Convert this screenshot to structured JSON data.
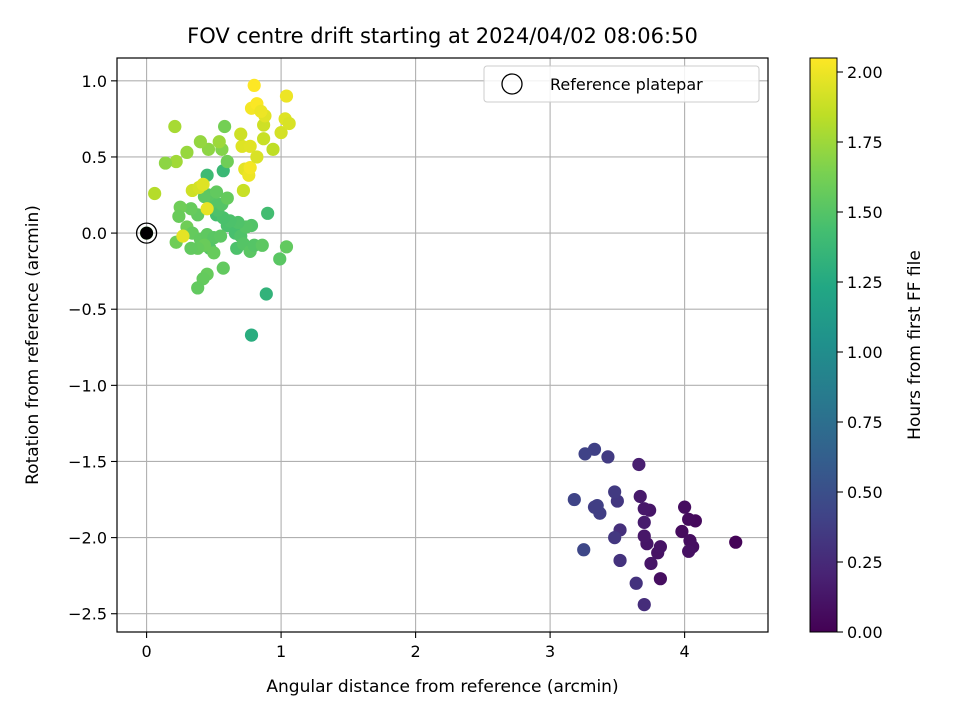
{
  "chart_data": {
    "type": "scatter",
    "title": "FOV centre drift starting at 2024/04/02 08:06:50",
    "xlabel": "Angular distance from reference (arcmin)",
    "ylabel": "Rotation from reference (arcmin)",
    "xlim": [
      -0.22,
      4.62
    ],
    "ylim": [
      -2.62,
      1.15
    ],
    "xticks": [
      0,
      1,
      2,
      3,
      4
    ],
    "xtick_labels": [
      "0",
      "1",
      "2",
      "3",
      "4"
    ],
    "yticks": [
      1.0,
      0.5,
      0.0,
      -0.5,
      -1.0,
      -1.5,
      -2.0,
      -2.5
    ],
    "ytick_labels": [
      "1.0",
      "0.5",
      "0.0",
      "−0.5",
      "−1.0",
      "−1.5",
      "−2.0",
      "−2.5"
    ],
    "grid": true,
    "colormap": "viridis",
    "colorbar": {
      "label": "Hours from first FF file",
      "range": [
        0.0,
        2.05
      ],
      "ticks": [
        0.0,
        0.25,
        0.5,
        0.75,
        1.0,
        1.25,
        1.5,
        1.75,
        2.0
      ],
      "tick_labels": [
        "0.00",
        "0.25",
        "0.50",
        "0.75",
        "1.00",
        "1.25",
        "1.50",
        "1.75",
        "2.00"
      ]
    },
    "legend": {
      "position": "top-right",
      "entries": [
        {
          "label": "Reference platepar",
          "marker": "open-circle"
        }
      ]
    },
    "reference_point": {
      "x": 0.0,
      "y": 0.0
    },
    "points": [
      {
        "x": 4.38,
        "y": -2.03,
        "c": 0.02
      },
      {
        "x": 4.08,
        "y": -1.89,
        "c": 0.05
      },
      {
        "x": 4.03,
        "y": -1.88,
        "c": 0.06
      },
      {
        "x": 4.0,
        "y": -1.8,
        "c": 0.07
      },
      {
        "x": 3.98,
        "y": -1.96,
        "c": 0.06
      },
      {
        "x": 4.04,
        "y": -2.02,
        "c": 0.07
      },
      {
        "x": 4.06,
        "y": -2.06,
        "c": 0.08
      },
      {
        "x": 4.03,
        "y": -2.09,
        "c": 0.09
      },
      {
        "x": 3.82,
        "y": -2.27,
        "c": 0.08
      },
      {
        "x": 3.8,
        "y": -2.1,
        "c": 0.1
      },
      {
        "x": 3.82,
        "y": -2.06,
        "c": 0.11
      },
      {
        "x": 3.75,
        "y": -2.17,
        "c": 0.12
      },
      {
        "x": 3.72,
        "y": -2.04,
        "c": 0.12
      },
      {
        "x": 3.7,
        "y": -1.99,
        "c": 0.13
      },
      {
        "x": 3.74,
        "y": -1.82,
        "c": 0.12
      },
      {
        "x": 3.7,
        "y": -1.81,
        "c": 0.14
      },
      {
        "x": 3.67,
        "y": -1.73,
        "c": 0.15
      },
      {
        "x": 3.7,
        "y": -1.9,
        "c": 0.16
      },
      {
        "x": 3.66,
        "y": -1.52,
        "c": 0.18
      },
      {
        "x": 3.7,
        "y": -2.44,
        "c": 0.27
      },
      {
        "x": 3.64,
        "y": -2.3,
        "c": 0.3
      },
      {
        "x": 3.52,
        "y": -1.95,
        "c": 0.28
      },
      {
        "x": 3.52,
        "y": -2.15,
        "c": 0.3
      },
      {
        "x": 3.48,
        "y": -2.0,
        "c": 0.33
      },
      {
        "x": 3.5,
        "y": -1.76,
        "c": 0.33
      },
      {
        "x": 3.48,
        "y": -1.7,
        "c": 0.35
      },
      {
        "x": 3.43,
        "y": -1.47,
        "c": 0.36
      },
      {
        "x": 3.37,
        "y": -1.84,
        "c": 0.38
      },
      {
        "x": 3.35,
        "y": -1.79,
        "c": 0.39
      },
      {
        "x": 3.33,
        "y": -1.8,
        "c": 0.38
      },
      {
        "x": 3.33,
        "y": -1.42,
        "c": 0.4
      },
      {
        "x": 3.26,
        "y": -1.45,
        "c": 0.41
      },
      {
        "x": 3.18,
        "y": -1.75,
        "c": 0.42
      },
      {
        "x": 3.25,
        "y": -2.08,
        "c": 0.44
      },
      {
        "x": 0.78,
        "y": -0.67,
        "c": 1.28
      },
      {
        "x": 0.89,
        "y": -0.4,
        "c": 1.33
      },
      {
        "x": 0.57,
        "y": 0.41,
        "c": 1.38
      },
      {
        "x": 0.45,
        "y": 0.38,
        "c": 1.4
      },
      {
        "x": 0.9,
        "y": 0.13,
        "c": 1.42
      },
      {
        "x": 0.52,
        "y": 0.12,
        "c": 1.44
      },
      {
        "x": 0.6,
        "y": 0.05,
        "c": 1.46
      },
      {
        "x": 0.66,
        "y": 0.0,
        "c": 1.45
      },
      {
        "x": 0.7,
        "y": -0.02,
        "c": 1.48
      },
      {
        "x": 0.67,
        "y": -0.1,
        "c": 1.47
      },
      {
        "x": 0.72,
        "y": -0.07,
        "c": 1.5
      },
      {
        "x": 0.77,
        "y": -0.12,
        "c": 1.52
      },
      {
        "x": 0.8,
        "y": -0.08,
        "c": 1.5
      },
      {
        "x": 0.86,
        "y": -0.08,
        "c": 1.53
      },
      {
        "x": 0.78,
        "y": 0.05,
        "c": 1.49
      },
      {
        "x": 0.74,
        "y": 0.04,
        "c": 1.5
      },
      {
        "x": 0.68,
        "y": 0.07,
        "c": 1.48
      },
      {
        "x": 0.62,
        "y": 0.08,
        "c": 1.47
      },
      {
        "x": 0.57,
        "y": 0.1,
        "c": 1.46
      },
      {
        "x": 0.53,
        "y": 0.15,
        "c": 1.47
      },
      {
        "x": 0.5,
        "y": 0.21,
        "c": 1.5
      },
      {
        "x": 0.46,
        "y": 0.25,
        "c": 1.52
      },
      {
        "x": 0.43,
        "y": 0.24,
        "c": 1.53
      },
      {
        "x": 0.52,
        "y": 0.27,
        "c": 1.55
      },
      {
        "x": 0.56,
        "y": 0.19,
        "c": 1.5
      },
      {
        "x": 0.6,
        "y": 0.23,
        "c": 1.56
      },
      {
        "x": 0.38,
        "y": 0.12,
        "c": 1.55
      },
      {
        "x": 0.33,
        "y": 0.16,
        "c": 1.57
      },
      {
        "x": 0.25,
        "y": 0.17,
        "c": 1.6
      },
      {
        "x": 0.24,
        "y": 0.11,
        "c": 1.58
      },
      {
        "x": 0.3,
        "y": 0.04,
        "c": 1.6
      },
      {
        "x": 0.34,
        "y": 0.0,
        "c": 1.56
      },
      {
        "x": 0.4,
        "y": -0.04,
        "c": 1.55
      },
      {
        "x": 0.45,
        "y": -0.01,
        "c": 1.54
      },
      {
        "x": 0.5,
        "y": -0.03,
        "c": 1.52
      },
      {
        "x": 0.55,
        "y": -0.02,
        "c": 1.53
      },
      {
        "x": 0.47,
        "y": -0.1,
        "c": 1.5
      },
      {
        "x": 0.5,
        "y": -0.13,
        "c": 1.57
      },
      {
        "x": 0.43,
        "y": -0.08,
        "c": 1.58
      },
      {
        "x": 0.38,
        "y": -0.1,
        "c": 1.56
      },
      {
        "x": 0.33,
        "y": -0.1,
        "c": 1.55
      },
      {
        "x": 0.22,
        "y": -0.06,
        "c": 1.6
      },
      {
        "x": 0.57,
        "y": -0.23,
        "c": 1.55
      },
      {
        "x": 0.45,
        "y": -0.27,
        "c": 1.57
      },
      {
        "x": 0.42,
        "y": -0.3,
        "c": 1.56
      },
      {
        "x": 0.38,
        "y": -0.36,
        "c": 1.55
      },
      {
        "x": 0.99,
        "y": -0.17,
        "c": 1.52
      },
      {
        "x": 1.04,
        "y": -0.09,
        "c": 1.55
      },
      {
        "x": 0.58,
        "y": 0.7,
        "c": 1.62
      },
      {
        "x": 0.6,
        "y": 0.47,
        "c": 1.6
      },
      {
        "x": 0.56,
        "y": 0.55,
        "c": 1.67
      },
      {
        "x": 0.46,
        "y": 0.55,
        "c": 1.7
      },
      {
        "x": 0.4,
        "y": 0.6,
        "c": 1.72
      },
      {
        "x": 0.54,
        "y": 0.6,
        "c": 1.75
      },
      {
        "x": 0.3,
        "y": 0.53,
        "c": 1.73
      },
      {
        "x": 0.22,
        "y": 0.47,
        "c": 1.76
      },
      {
        "x": 0.14,
        "y": 0.46,
        "c": 1.7
      },
      {
        "x": 0.21,
        "y": 0.7,
        "c": 1.78
      },
      {
        "x": 0.06,
        "y": 0.26,
        "c": 1.82
      },
      {
        "x": 0.34,
        "y": 0.28,
        "c": 1.9
      },
      {
        "x": 0.39,
        "y": 0.3,
        "c": 1.92
      },
      {
        "x": 0.42,
        "y": 0.32,
        "c": 1.95
      },
      {
        "x": 0.45,
        "y": 0.16,
        "c": 1.98
      },
      {
        "x": 0.27,
        "y": -0.02,
        "c": 1.97
      },
      {
        "x": 0.72,
        "y": 0.28,
        "c": 1.88
      },
      {
        "x": 0.73,
        "y": 0.42,
        "c": 1.97
      },
      {
        "x": 0.76,
        "y": 0.38,
        "c": 2.0
      },
      {
        "x": 0.77,
        "y": 0.43,
        "c": 2.02
      },
      {
        "x": 0.71,
        "y": 0.57,
        "c": 1.95
      },
      {
        "x": 0.7,
        "y": 0.65,
        "c": 1.9
      },
      {
        "x": 0.77,
        "y": 0.57,
        "c": 1.96
      },
      {
        "x": 0.82,
        "y": 0.5,
        "c": 1.93
      },
      {
        "x": 0.87,
        "y": 0.62,
        "c": 1.88
      },
      {
        "x": 0.87,
        "y": 0.71,
        "c": 1.9
      },
      {
        "x": 0.94,
        "y": 0.55,
        "c": 1.85
      },
      {
        "x": 1.0,
        "y": 0.66,
        "c": 1.92
      },
      {
        "x": 1.03,
        "y": 0.75,
        "c": 1.95
      },
      {
        "x": 1.06,
        "y": 0.72,
        "c": 1.93
      },
      {
        "x": 1.04,
        "y": 0.9,
        "c": 2.0
      },
      {
        "x": 0.88,
        "y": 0.77,
        "c": 1.96
      },
      {
        "x": 0.78,
        "y": 0.82,
        "c": 2.02
      },
      {
        "x": 0.82,
        "y": 0.85,
        "c": 2.04
      },
      {
        "x": 0.85,
        "y": 0.8,
        "c": 2.0
      },
      {
        "x": 0.8,
        "y": 0.97,
        "c": 2.05
      }
    ]
  }
}
